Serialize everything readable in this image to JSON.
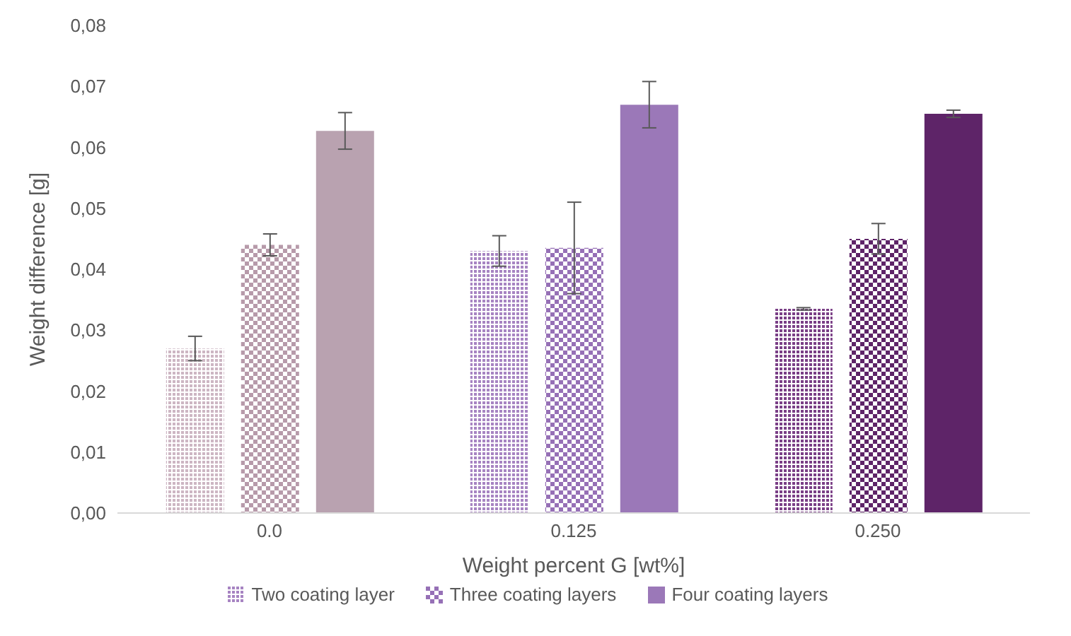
{
  "chart_data": {
    "type": "bar",
    "xlabel": "Weight percent G [wt%]",
    "ylabel": "Weight difference [g]",
    "categories": [
      "0.0",
      "0.125",
      "0.250"
    ],
    "series": [
      {
        "name": "Two coating layer",
        "color": "#a784c2",
        "colors": [
          "#cdb6c3",
          "#a784c2",
          "#7a3f86"
        ],
        "values": [
          0.027,
          0.043,
          0.0335
        ],
        "errors": [
          0.002,
          0.0025,
          0.0002
        ]
      },
      {
        "name": "Three coating layers",
        "color": "#9670b6",
        "colors": [
          "#b79aaa",
          "#9670b6",
          "#5e2468"
        ],
        "values": [
          0.044,
          0.0435,
          0.045
        ],
        "errors": [
          0.0018,
          0.0075,
          0.0025
        ]
      },
      {
        "name": "Four coating layers",
        "color": "#9b78b8",
        "colors": [
          "#b9a2b0",
          "#9b78b8",
          "#5e2468"
        ],
        "values": [
          0.0627,
          0.067,
          0.0655
        ],
        "errors": [
          0.003,
          0.0038,
          0.0006
        ]
      }
    ],
    "ylim": [
      0,
      0.08
    ],
    "yticks": [
      {
        "value": 0,
        "label": "0,00"
      },
      {
        "value": 0.01,
        "label": "0,01"
      },
      {
        "value": 0.02,
        "label": "0,02"
      },
      {
        "value": 0.03,
        "label": "0,03"
      },
      {
        "value": 0.04,
        "label": "0,04"
      },
      {
        "value": 0.05,
        "label": "0,05"
      },
      {
        "value": 0.06,
        "label": "0,06"
      },
      {
        "value": 0.07,
        "label": "0,07"
      },
      {
        "value": 0.08,
        "label": "0,08"
      }
    ],
    "grid": false,
    "legend": "bottom"
  }
}
